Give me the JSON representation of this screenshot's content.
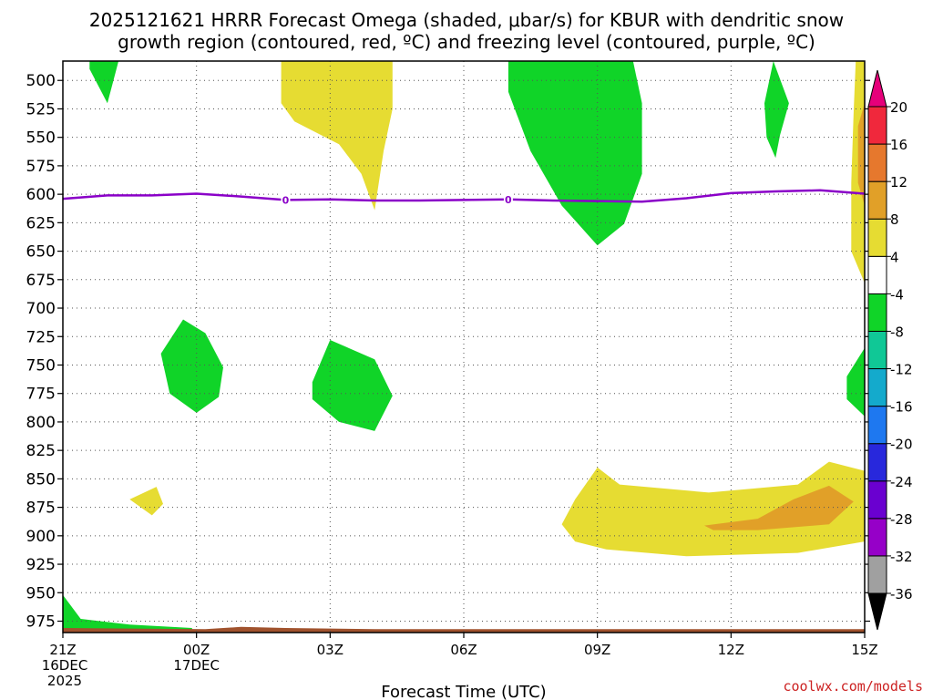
{
  "chart_data": {
    "type": "time-height contour",
    "title_line1": "2025121621 HRRR Forecast Omega (shaded, μbar/s) for KBUR with dendritic snow",
    "title_line2": "growth region (contoured, red, ºC) and freezing level (contoured, purple, ºC)",
    "xlabel": "Forecast Time (UTC)",
    "credit": "coolwx.com/models",
    "x_range_hours": [
      0,
      18
    ],
    "y_range_mb": [
      483,
      985
    ],
    "y_ticks": [
      500,
      525,
      550,
      575,
      600,
      625,
      650,
      675,
      700,
      725,
      750,
      775,
      800,
      825,
      850,
      875,
      900,
      925,
      950,
      975
    ],
    "y_tick_labels": [
      "500",
      "525",
      "550",
      "575",
      "600",
      "625",
      "650",
      "675",
      "700",
      "725",
      "750",
      "775",
      "800",
      "825",
      "850",
      "875",
      "900",
      "925",
      "950",
      "975"
    ],
    "x_ticks": [
      {
        "hour": 0,
        "line1": "21Z",
        "line2": "16DEC",
        "line3": "2025"
      },
      {
        "hour": 3,
        "line1": "00Z",
        "line2": "17DEC",
        "line3": ""
      },
      {
        "hour": 6,
        "line1": "03Z",
        "line2": "",
        "line3": ""
      },
      {
        "hour": 9,
        "line1": "06Z",
        "line2": "",
        "line3": ""
      },
      {
        "hour": 12,
        "line1": "09Z",
        "line2": "",
        "line3": ""
      },
      {
        "hour": 15,
        "line1": "12Z",
        "line2": "",
        "line3": ""
      },
      {
        "hour": 18,
        "line1": "15Z",
        "line2": "",
        "line3": ""
      }
    ],
    "colorbar": {
      "levels": [
        -36,
        -32,
        -28,
        -24,
        -20,
        -16,
        -12,
        -8,
        -4,
        4,
        8,
        12,
        16,
        20
      ],
      "level_labels": [
        "-36",
        "-32",
        "-28",
        "-24",
        "-20",
        "-16",
        "-12",
        "-8",
        "-4",
        "4",
        "8",
        "12",
        "16",
        "20"
      ],
      "colors": [
        "#000000",
        "#a0a0a0",
        "#9600c8",
        "#6a00d0",
        "#2828dc",
        "#1e78f0",
        "#14aacc",
        "#10c896",
        "#10d428",
        "#ffffff",
        "#e6dc32",
        "#e1a028",
        "#e6782d",
        "#f0283c",
        "#e6007a"
      ]
    },
    "fill_colors": {
      "yellow": "#e6dc32",
      "orange": "#e1a028",
      "green": "#10d428",
      "ground": "#a0522d"
    },
    "freezing_level": {
      "label": "0",
      "hours": [
        0,
        1,
        2,
        3,
        4,
        5,
        6,
        7,
        8,
        9,
        10,
        11,
        12,
        13,
        14,
        15,
        16,
        17,
        18
      ],
      "pressure_mb": [
        604,
        601,
        601,
        599.5,
        602,
        605,
        604.5,
        605.5,
        605.5,
        605,
        604.5,
        605.5,
        606,
        606.5,
        603.5,
        599,
        597.5,
        596.5,
        599.5
      ],
      "label_hours": [
        5,
        10
      ]
    },
    "regions": [
      {
        "name": "green-top-left",
        "color": "green",
        "pts": [
          [
            0.6,
            483
          ],
          [
            1.25,
            483
          ],
          [
            1.0,
            520
          ],
          [
            0.6,
            490
          ]
        ]
      },
      {
        "name": "yellow-upper-mid",
        "color": "yellow",
        "pts": [
          [
            4.9,
            483
          ],
          [
            7.4,
            483
          ],
          [
            7.4,
            525
          ],
          [
            7.2,
            562
          ],
          [
            7.0,
            614
          ],
          [
            6.7,
            582
          ],
          [
            6.2,
            556
          ],
          [
            5.2,
            536
          ],
          [
            4.9,
            520
          ]
        ]
      },
      {
        "name": "green-upper-mid",
        "color": "green",
        "pts": [
          [
            10.0,
            483
          ],
          [
            12.8,
            483
          ],
          [
            13.0,
            520
          ],
          [
            13.0,
            582
          ],
          [
            12.6,
            626
          ],
          [
            12.0,
            645
          ],
          [
            11.2,
            610
          ],
          [
            10.5,
            562
          ],
          [
            10.0,
            510
          ]
        ]
      },
      {
        "name": "green-upper-right",
        "color": "green",
        "pts": [
          [
            15.95,
            483
          ],
          [
            16.3,
            520
          ],
          [
            16.1,
            548
          ],
          [
            16.0,
            568
          ],
          [
            15.8,
            550
          ],
          [
            15.75,
            520
          ]
        ]
      },
      {
        "name": "yellow-right-edge",
        "color": "yellow",
        "pts": [
          [
            17.8,
            483
          ],
          [
            18.0,
            483
          ],
          [
            18.0,
            678
          ],
          [
            17.7,
            650
          ],
          [
            17.7,
            590
          ],
          [
            17.75,
            530
          ]
        ]
      },
      {
        "name": "orange-right-edge",
        "color": "orange",
        "pts": [
          [
            17.85,
            540
          ],
          [
            18.0,
            520
          ],
          [
            18.0,
            610
          ],
          [
            17.85,
            590
          ]
        ]
      },
      {
        "name": "green-mid-left",
        "color": "green",
        "pts": [
          [
            2.2,
            740
          ],
          [
            2.7,
            710
          ],
          [
            3.2,
            722
          ],
          [
            3.6,
            752
          ],
          [
            3.5,
            778
          ],
          [
            3.0,
            792
          ],
          [
            2.4,
            775
          ]
        ]
      },
      {
        "name": "green-mid-center",
        "color": "green",
        "pts": [
          [
            5.6,
            765
          ],
          [
            6.0,
            728
          ],
          [
            7.0,
            745
          ],
          [
            7.4,
            777
          ],
          [
            7.0,
            808
          ],
          [
            6.2,
            800
          ],
          [
            5.6,
            780
          ]
        ]
      },
      {
        "name": "green-right-mid",
        "color": "green",
        "pts": [
          [
            17.6,
            760
          ],
          [
            18.0,
            735
          ],
          [
            18.0,
            795
          ],
          [
            17.6,
            780
          ]
        ]
      },
      {
        "name": "yellow-small-left",
        "color": "yellow",
        "pts": [
          [
            1.5,
            868
          ],
          [
            2.1,
            857
          ],
          [
            2.25,
            872
          ],
          [
            2.0,
            882
          ]
        ]
      },
      {
        "name": "yellow-lower-right",
        "color": "yellow",
        "pts": [
          [
            11.2,
            890
          ],
          [
            11.5,
            868
          ],
          [
            12.0,
            840
          ],
          [
            12.5,
            855
          ],
          [
            14.5,
            862
          ],
          [
            16.5,
            855
          ],
          [
            17.2,
            835
          ],
          [
            18.0,
            843
          ],
          [
            18.0,
            905
          ],
          [
            16.5,
            915
          ],
          [
            14.0,
            918
          ],
          [
            12.2,
            912
          ],
          [
            11.5,
            905
          ]
        ]
      },
      {
        "name": "orange-lower-right",
        "color": "orange",
        "pts": [
          [
            14.4,
            891
          ],
          [
            15.6,
            885
          ],
          [
            16.4,
            868
          ],
          [
            17.2,
            856
          ],
          [
            17.75,
            870
          ],
          [
            17.2,
            890
          ],
          [
            15.6,
            895
          ],
          [
            14.6,
            895
          ]
        ]
      },
      {
        "name": "green-bottom-left",
        "color": "green",
        "pts": [
          [
            0,
            952
          ],
          [
            0.4,
            973
          ],
          [
            1.5,
            978
          ],
          [
            2.9,
            981
          ],
          [
            2.9,
            985
          ],
          [
            0,
            985
          ]
        ]
      },
      {
        "name": "ground-strip",
        "color": "ground",
        "pts": [
          [
            0,
            981
          ],
          [
            3.2,
            982
          ],
          [
            4.0,
            980
          ],
          [
            5.0,
            981
          ],
          [
            7.0,
            982
          ],
          [
            18.0,
            982
          ],
          [
            18.0,
            985
          ],
          [
            0,
            985
          ]
        ]
      }
    ]
  }
}
